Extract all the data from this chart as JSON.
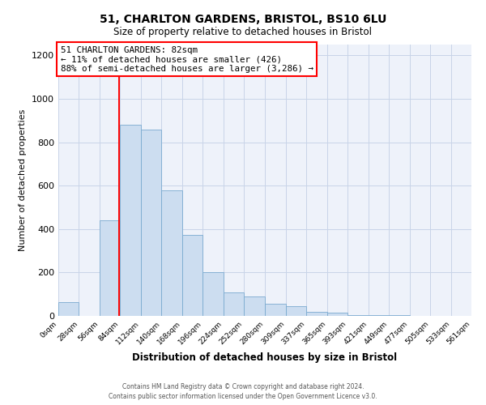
{
  "title": "51, CHARLTON GARDENS, BRISTOL, BS10 6LU",
  "subtitle": "Size of property relative to detached houses in Bristol",
  "xlabel": "Distribution of detached houses by size in Bristol",
  "ylabel": "Number of detached properties",
  "bar_color": "#ccddf0",
  "bar_edge_color": "#7aaad0",
  "grid_color": "#c8d4e8",
  "bg_color": "#eef2fa",
  "red_line_x": 82,
  "bin_edges": [
    0,
    28,
    56,
    84,
    112,
    140,
    168,
    196,
    224,
    252,
    280,
    309,
    337,
    365,
    393,
    421,
    449,
    477,
    505,
    533,
    561
  ],
  "bin_labels": [
    "0sqm",
    "28sqm",
    "56sqm",
    "84sqm",
    "112sqm",
    "140sqm",
    "168sqm",
    "196sqm",
    "224sqm",
    "252sqm",
    "280sqm",
    "309sqm",
    "337sqm",
    "365sqm",
    "393sqm",
    "421sqm",
    "449sqm",
    "477sqm",
    "505sqm",
    "533sqm",
    "561sqm"
  ],
  "bar_heights": [
    65,
    0,
    440,
    880,
    860,
    580,
    375,
    200,
    110,
    88,
    55,
    45,
    20,
    15,
    5,
    2,
    2,
    1,
    1,
    0
  ],
  "ylim": [
    0,
    1250
  ],
  "yticks": [
    0,
    200,
    400,
    600,
    800,
    1000,
    1200
  ],
  "annotation_title": "51 CHARLTON GARDENS: 82sqm",
  "annotation_line1": "← 11% of detached houses are smaller (426)",
  "annotation_line2": "88% of semi-detached houses are larger (3,286) →",
  "footer_line1": "Contains HM Land Registry data © Crown copyright and database right 2024.",
  "footer_line2": "Contains public sector information licensed under the Open Government Licence v3.0."
}
